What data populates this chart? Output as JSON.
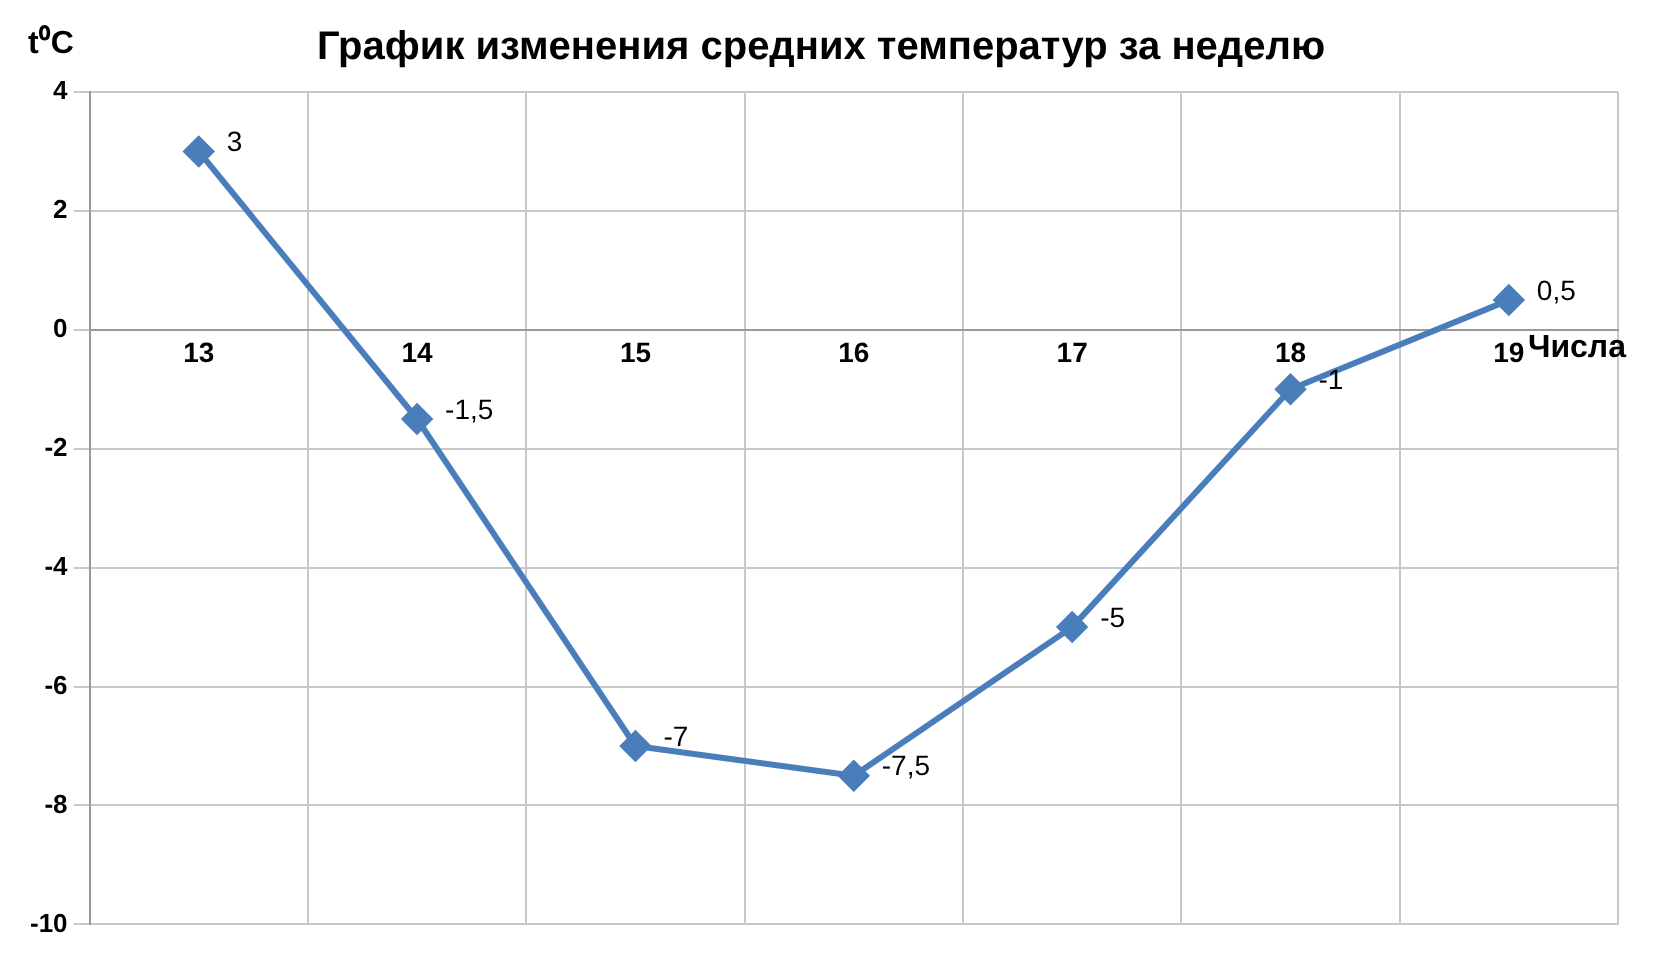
{
  "chart_data": {
    "type": "line",
    "title": "График изменения средних температур за неделю",
    "xlabel": "Числа",
    "ylabel": "t⁰C",
    "categories": [
      "13",
      "14",
      "15",
      "16",
      "17",
      "18",
      "19"
    ],
    "series": [
      {
        "color": "#4a7ebb",
        "values": [
          3,
          -1.5,
          -7,
          -7.5,
          -5,
          -1,
          0.5
        ],
        "value_labels": [
          "3",
          "-1,5",
          "-7",
          "-7,5",
          "-5",
          "-1",
          "0,5"
        ]
      }
    ],
    "ylim": [
      -10,
      4
    ],
    "yticks": [
      -10,
      -8,
      -6,
      -4,
      -2,
      0,
      2,
      4
    ],
    "grid": true,
    "legend": false,
    "marker": "diamond",
    "line_style": "solid"
  }
}
